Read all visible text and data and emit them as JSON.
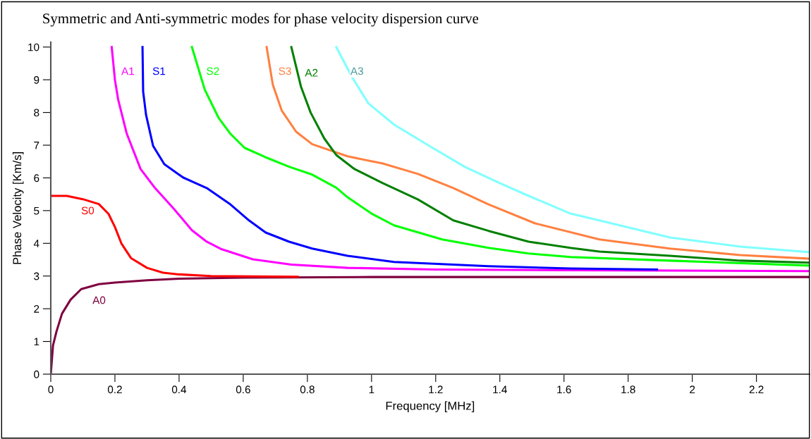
{
  "chart_data": {
    "type": "line",
    "title": "Symmetric and Anti-symmetric modes for phase velocity dispersion curve",
    "xlabel": "Frequency [MHz]",
    "ylabel": "Phase Velocity [Km/s]",
    "xlim": [
      0,
      2.365
    ],
    "ylim": [
      0,
      10.15
    ],
    "xticks": [
      0,
      0.2,
      0.4,
      0.6,
      0.8,
      1,
      1.2,
      1.4,
      1.6,
      1.8,
      2,
      2.2
    ],
    "yticks": [
      0,
      1,
      2,
      3,
      4,
      5,
      6,
      7,
      8,
      9,
      10
    ],
    "grid": false,
    "legend": false,
    "line_style": "solid",
    "series": [
      {
        "name": "A0",
        "color": "#7f0040",
        "x": [
          0,
          0.007,
          0.018,
          0.035,
          0.062,
          0.095,
          0.15,
          0.2,
          0.3,
          0.4,
          0.6,
          1.0,
          2.365
        ],
        "values": [
          0,
          0.88,
          1.31,
          1.85,
          2.28,
          2.6,
          2.75,
          2.8,
          2.87,
          2.92,
          2.95,
          2.97,
          2.97
        ]
      },
      {
        "name": "S0",
        "color": "#ff0000",
        "x": [
          0,
          0.05,
          0.1,
          0.15,
          0.18,
          0.2,
          0.22,
          0.25,
          0.3,
          0.35,
          0.4,
          0.5,
          0.77
        ],
        "values": [
          5.45,
          5.45,
          5.35,
          5.2,
          4.9,
          4.5,
          4.0,
          3.55,
          3.25,
          3.1,
          3.05,
          3.0,
          2.98
        ]
      },
      {
        "name": "A1",
        "color": "#ff00ff",
        "x": [
          0.19,
          0.2,
          0.21,
          0.237,
          0.28,
          0.325,
          0.385,
          0.44,
          0.486,
          0.53,
          0.63,
          0.75,
          0.925,
          1.2,
          1.6,
          2.365
        ],
        "values": [
          10,
          9.0,
          8.4,
          7.35,
          6.27,
          5.69,
          5.04,
          4.4,
          4.05,
          3.83,
          3.51,
          3.35,
          3.25,
          3.2,
          3.18,
          3.15
        ]
      },
      {
        "name": "S1",
        "color": "#0000ff",
        "x": [
          0.286,
          0.288,
          0.297,
          0.319,
          0.354,
          0.413,
          0.486,
          0.56,
          0.618,
          0.67,
          0.743,
          0.815,
          0.925,
          1.07,
          1.365,
          1.62,
          1.89
        ],
        "values": [
          10,
          8.64,
          7.93,
          6.98,
          6.42,
          6.01,
          5.69,
          5.19,
          4.7,
          4.33,
          4.05,
          3.84,
          3.62,
          3.43,
          3.3,
          3.23,
          3.2
        ]
      },
      {
        "name": "S2",
        "color": "#00ff00",
        "x": [
          0.44,
          0.48,
          0.523,
          0.56,
          0.604,
          0.67,
          0.743,
          0.815,
          0.89,
          0.925,
          1.0,
          1.07,
          1.22,
          1.365,
          1.49,
          1.62,
          1.93,
          2.365
        ],
        "values": [
          10,
          8.7,
          7.84,
          7.35,
          6.92,
          6.63,
          6.34,
          6.1,
          5.7,
          5.41,
          4.91,
          4.55,
          4.12,
          3.86,
          3.69,
          3.58,
          3.47,
          3.32
        ]
      },
      {
        "name": "S3",
        "color": "#ff8040",
        "x": [
          0.673,
          0.692,
          0.72,
          0.765,
          0.815,
          0.925,
          1.035,
          1.145,
          1.255,
          1.365,
          1.51,
          1.71,
          1.93,
          2.15,
          2.365
        ],
        "values": [
          10,
          8.86,
          8.06,
          7.41,
          7.03,
          6.66,
          6.44,
          6.12,
          5.69,
          5.19,
          4.61,
          4.12,
          3.84,
          3.64,
          3.53
        ]
      },
      {
        "name": "A2",
        "color": "#008000",
        "x": [
          0.75,
          0.78,
          0.81,
          0.853,
          0.89,
          0.947,
          1.035,
          1.145,
          1.255,
          1.365,
          1.49,
          1.62,
          1.71,
          1.93,
          2.15,
          2.365
        ],
        "values": [
          10,
          8.79,
          8.0,
          7.2,
          6.7,
          6.27,
          5.84,
          5.34,
          4.7,
          4.38,
          4.05,
          3.86,
          3.75,
          3.62,
          3.47,
          3.41
        ]
      },
      {
        "name": "A3",
        "color": "#80ffff",
        "x": [
          0.89,
          0.94,
          0.99,
          1.07,
          1.18,
          1.29,
          1.4,
          1.49,
          1.62,
          1.71,
          1.93,
          2.15,
          2.365
        ],
        "values": [
          10,
          9.07,
          8.28,
          7.63,
          6.98,
          6.34,
          5.84,
          5.45,
          4.91,
          4.7,
          4.18,
          3.9,
          3.73
        ]
      }
    ]
  }
}
